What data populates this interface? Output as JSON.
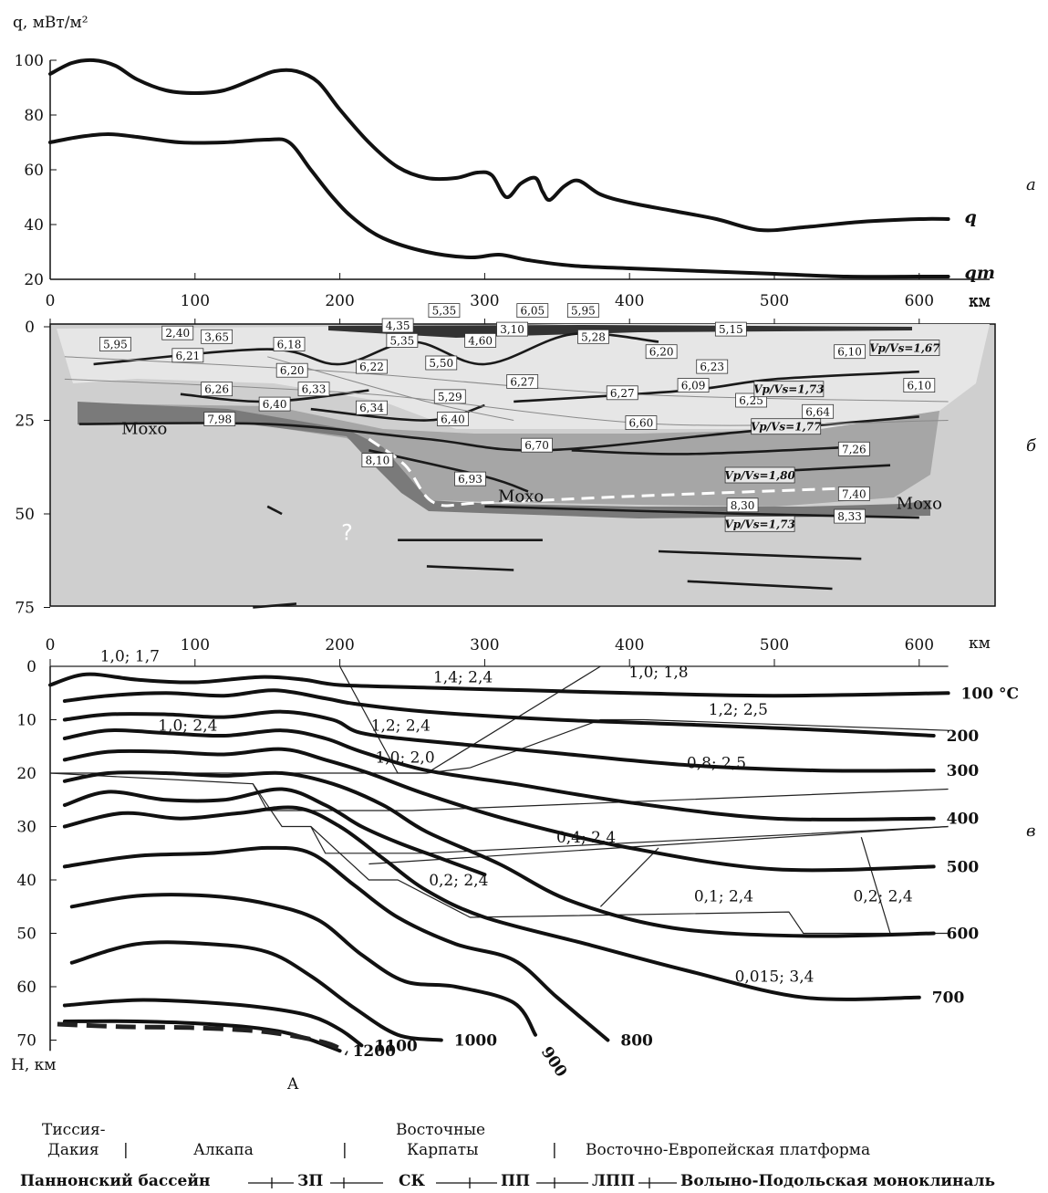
{
  "chart_data": [
    {
      "panel_letter": "а",
      "type": "line",
      "ylabel": "q, мВт/м²",
      "xlabel": "км",
      "xlim": [
        0,
        620
      ],
      "ylim": [
        20,
        100
      ],
      "y_ticks": [
        100,
        80,
        60,
        40,
        20
      ],
      "x_ticks": [
        0,
        100,
        200,
        300,
        400,
        500,
        600
      ],
      "series": [
        {
          "name": "q",
          "x": [
            0,
            15,
            30,
            45,
            60,
            80,
            100,
            120,
            140,
            155,
            170,
            185,
            200,
            220,
            240,
            260,
            280,
            295,
            305,
            315,
            325,
            335,
            340,
            345,
            355,
            365,
            380,
            400,
            430,
            460,
            490,
            520,
            560,
            600,
            620
          ],
          "y": [
            95,
            99,
            100,
            98,
            93,
            89,
            88,
            89,
            93,
            96,
            96,
            92,
            82,
            70,
            61,
            57,
            57,
            59,
            58,
            50,
            55,
            57,
            52,
            49,
            54,
            56,
            51,
            48,
            45,
            42,
            38,
            39,
            41,
            42,
            42
          ]
        },
        {
          "name": "qm",
          "x": [
            0,
            20,
            40,
            60,
            90,
            120,
            150,
            165,
            180,
            195,
            210,
            230,
            260,
            290,
            310,
            330,
            360,
            400,
            450,
            500,
            550,
            600,
            620
          ],
          "y": [
            70,
            72,
            73,
            72,
            70,
            70,
            71,
            70,
            60,
            50,
            42,
            35,
            30,
            28,
            29,
            27,
            25,
            24,
            23,
            22,
            21,
            21,
            21
          ]
        }
      ]
    },
    {
      "panel_letter": "б",
      "type": "table",
      "xlabel": "км",
      "x_ticks": [
        0,
        100,
        200,
        300,
        400,
        500,
        600
      ],
      "y_ticks": [
        0,
        25,
        50,
        75
      ],
      "moho_labels": [
        {
          "text": "Мохо",
          "x": 65,
          "depth": 27
        },
        {
          "text": "Мохо",
          "x": 325,
          "depth": 45
        },
        {
          "text": "Мохо",
          "x": 600,
          "depth": 47
        }
      ],
      "question_mark": "?",
      "velocities": [
        {
          "v": "2,40",
          "x": 88,
          "depth": 2
        },
        {
          "v": "3,65",
          "x": 115,
          "depth": 3
        },
        {
          "v": "5,95",
          "x": 45,
          "depth": 5
        },
        {
          "v": "6,21",
          "x": 95,
          "depth": 8
        },
        {
          "v": "6,18",
          "x": 165,
          "depth": 5
        },
        {
          "v": "4,35",
          "x": 240,
          "depth": 0
        },
        {
          "v": "5,35",
          "x": 272,
          "depth": -4
        },
        {
          "v": "5,35",
          "x": 243,
          "depth": 4
        },
        {
          "v": "6,05",
          "x": 333,
          "depth": -4
        },
        {
          "v": "5,95",
          "x": 368,
          "depth": -4
        },
        {
          "v": "3,10",
          "x": 319,
          "depth": 1
        },
        {
          "v": "4,60",
          "x": 297,
          "depth": 4
        },
        {
          "v": "5,28",
          "x": 375,
          "depth": 3
        },
        {
          "v": "5,15",
          "x": 470,
          "depth": 1
        },
        {
          "v": "6,20",
          "x": 167,
          "depth": 12
        },
        {
          "v": "6,22",
          "x": 222,
          "depth": 11
        },
        {
          "v": "5,50",
          "x": 270,
          "depth": 10
        },
        {
          "v": "6,20",
          "x": 422,
          "depth": 7
        },
        {
          "v": "6,10",
          "x": 552,
          "depth": 7
        },
        {
          "v": "6,23",
          "x": 457,
          "depth": 11
        },
        {
          "v": "6,26",
          "x": 115,
          "depth": 17
        },
        {
          "v": "6,33",
          "x": 182,
          "depth": 17
        },
        {
          "v": "6,27",
          "x": 326,
          "depth": 15
        },
        {
          "v": "5,29",
          "x": 276,
          "depth": 19
        },
        {
          "v": "6,09",
          "x": 444,
          "depth": 16
        },
        {
          "v": "6,27",
          "x": 395,
          "depth": 18
        },
        {
          "v": "6,25",
          "x": 484,
          "depth": 20
        },
        {
          "v": "6,10",
          "x": 600,
          "depth": 16
        },
        {
          "v": "6,40",
          "x": 155,
          "depth": 21
        },
        {
          "v": "6,34",
          "x": 222,
          "depth": 22
        },
        {
          "v": "6,40",
          "x": 278,
          "depth": 25
        },
        {
          "v": "6,64",
          "x": 530,
          "depth": 23
        },
        {
          "v": "7,98",
          "x": 117,
          "depth": 25
        },
        {
          "v": "6,60",
          "x": 408,
          "depth": 26
        },
        {
          "v": "6,70",
          "x": 336,
          "depth": 32
        },
        {
          "v": "7,26",
          "x": 555,
          "depth": 33
        },
        {
          "v": "8,10",
          "x": 226,
          "depth": 36
        },
        {
          "v": "6,93",
          "x": 290,
          "depth": 41
        },
        {
          "v": "7,40",
          "x": 555,
          "depth": 45
        },
        {
          "v": "8,30",
          "x": 478,
          "depth": 48
        },
        {
          "v": "8,33",
          "x": 552,
          "depth": 51
        }
      ],
      "ratios": [
        {
          "text": "Vp/Vs=1,67",
          "x": 590,
          "depth": 6
        },
        {
          "text": "Vp/Vs=1,73",
          "x": 510,
          "depth": 17
        },
        {
          "text": "Vp/Vs=1,77",
          "x": 508,
          "depth": 27
        },
        {
          "text": "Vp/Vs=1,80",
          "x": 490,
          "depth": 40
        },
        {
          "text": "Vp/Vs=1,73",
          "x": 490,
          "depth": 53
        }
      ]
    },
    {
      "panel_letter": "в",
      "type": "line",
      "xlabel": "км",
      "ylabel": "H, км",
      "x_ticks": [
        0,
        100,
        200,
        300,
        400,
        500,
        600
      ],
      "y_ticks": [
        0,
        10,
        20,
        30,
        40,
        50,
        60,
        70
      ],
      "xlim": [
        0,
        620
      ],
      "ylim": [
        0,
        70
      ],
      "series": [
        {
          "name": "100 °C",
          "x": [
            0,
            25,
            60,
            100,
            145,
            175,
            200,
            260,
            330,
            400,
            500,
            620
          ],
          "y": [
            3.5,
            1.5,
            2.5,
            3,
            2,
            2.5,
            3.5,
            4,
            4.5,
            5,
            5.5,
            5
          ]
        },
        {
          "name": "200",
          "x": [
            10,
            40,
            80,
            120,
            155,
            190,
            210,
            260,
            350,
            450,
            540,
            610
          ],
          "y": [
            6.5,
            5.5,
            5,
            5.5,
            4.5,
            6,
            7,
            8.5,
            10,
            11,
            12,
            13
          ]
        },
        {
          "name": "300",
          "x": [
            10,
            40,
            80,
            120,
            160,
            195,
            215,
            260,
            340,
            440,
            530,
            610
          ],
          "y": [
            10,
            9,
            9,
            9.5,
            8.5,
            10,
            12.5,
            14,
            16,
            18.5,
            19.5,
            19.5
          ]
        },
        {
          "name": "400",
          "x": [
            10,
            40,
            80,
            120,
            160,
            190,
            215,
            260,
            320,
            400,
            500,
            610
          ],
          "y": [
            13.5,
            12,
            12.5,
            13,
            12,
            13.5,
            16,
            19.5,
            22,
            25.5,
            28.5,
            28.5
          ]
        },
        {
          "name": "500",
          "x": [
            10,
            40,
            80,
            120,
            160,
            190,
            220,
            260,
            320,
            400,
            500,
            610
          ],
          "y": [
            17.5,
            16,
            16,
            16.5,
            15.5,
            17.5,
            20,
            24,
            29,
            34,
            38,
            37.5
          ]
        },
        {
          "name": "600",
          "x": [
            10,
            40,
            80,
            120,
            160,
            195,
            230,
            260,
            310,
            360,
            430,
            520,
            610
          ],
          "y": [
            21.5,
            20,
            20,
            20.5,
            20,
            22,
            26,
            31,
            37,
            44,
            49,
            50.5,
            50
          ]
        },
        {
          "name": "",
          "x": [
            10,
            40,
            80,
            120,
            160,
            190,
            215,
            240,
            270,
            300
          ],
          "y": [
            26,
            23.5,
            25,
            25,
            23,
            26,
            30,
            33,
            36,
            39
          ]
        },
        {
          "name": "700",
          "x": [
            10,
            50,
            90,
            130,
            170,
            200,
            230,
            260,
            300,
            370,
            440,
            520,
            600
          ],
          "y": [
            30,
            27.5,
            28.5,
            27.5,
            26.5,
            30,
            36,
            42,
            47,
            52,
            57,
            62,
            62
          ]
        },
        {
          "name": "800",
          "x": [
            10,
            60,
            110,
            150,
            180,
            210,
            240,
            280,
            320,
            350,
            385
          ],
          "y": [
            37.5,
            35.5,
            35,
            34,
            35,
            41,
            47,
            52,
            55,
            62,
            70
          ]
        },
        {
          "name": "900",
          "x": [
            15,
            60,
            110,
            150,
            185,
            215,
            245,
            280,
            320,
            335
          ],
          "y": [
            45,
            43,
            43,
            44.5,
            47.5,
            54,
            59,
            60,
            63,
            69
          ]
        },
        {
          "name": "1000",
          "x": [
            15,
            60,
            110,
            150,
            180,
            210,
            240,
            270
          ],
          "y": [
            55.5,
            52,
            52,
            53.5,
            58,
            64,
            69,
            70
          ]
        },
        {
          "name": "1100",
          "x": [
            10,
            60,
            110,
            150,
            180,
            200,
            215
          ],
          "y": [
            63.5,
            62.5,
            63,
            64,
            65.5,
            68,
            71
          ]
        },
        {
          "name": "1200",
          "x": [
            10,
            60,
            110,
            150,
            175,
            200
          ],
          "y": [
            66.5,
            66.5,
            67,
            68,
            69.5,
            72
          ]
        }
      ],
      "dashed_line": {
        "label": "A",
        "x": [
          5,
          50,
          100,
          150,
          190,
          205
        ],
        "y": [
          67,
          67.5,
          67.7,
          68.5,
          70.5,
          72.5
        ]
      },
      "conductivity_labels": [
        {
          "text": "1,0; 1,7",
          "x": 55,
          "depth": -2
        },
        {
          "text": "1,4; 2,4",
          "x": 285,
          "depth": 2
        },
        {
          "text": "1,0; 1,8",
          "x": 420,
          "depth": 1
        },
        {
          "text": "1,2; 2,5",
          "x": 475,
          "depth": 8
        },
        {
          "text": "1,0; 2,4",
          "x": 95,
          "depth": 11
        },
        {
          "text": "1,2; 2,4",
          "x": 242,
          "depth": 11
        },
        {
          "text": "1,0; 2,0",
          "x": 245,
          "depth": 17
        },
        {
          "text": "0,8; 2,5",
          "x": 460,
          "depth": 18
        },
        {
          "text": "0,4; 2,4",
          "x": 370,
          "depth": 32
        },
        {
          "text": "0,2; 2,4",
          "x": 282,
          "depth": 40
        },
        {
          "text": "0,1; 2,4",
          "x": 465,
          "depth": 43
        },
        {
          "text": "0,2; 2,4",
          "x": 575,
          "depth": 43
        },
        {
          "text": "0,015; 3,4",
          "x": 500,
          "depth": 58
        }
      ],
      "block_boundaries": [
        {
          "x": [
            200,
            240,
            260
          ],
          "y": [
            0,
            20,
            20
          ]
        },
        {
          "x": [
            240,
            260,
            380
          ],
          "y": [
            20,
            20,
            0
          ]
        },
        {
          "x": [
            260,
            290,
            380,
            410,
            620
          ],
          "y": [
            20,
            19,
            10,
            10,
            12
          ]
        },
        {
          "x": [
            0,
            240
          ],
          "y": [
            20,
            20
          ]
        },
        {
          "x": [
            0,
            140,
            150,
            250,
            620
          ],
          "y": [
            20,
            22,
            27,
            27,
            23
          ]
        },
        {
          "x": [
            140,
            160,
            180,
            190,
            260,
            620
          ],
          "y": [
            22,
            30,
            30,
            35,
            35,
            30
          ]
        },
        {
          "x": [
            180,
            220,
            240,
            290,
            510,
            520,
            620
          ],
          "y": [
            30,
            40,
            40,
            47,
            46,
            50,
            50
          ]
        },
        {
          "x": [
            220,
            620
          ],
          "y": [
            37,
            30
          ]
        },
        {
          "x": [
            380,
            420
          ],
          "y": [
            45,
            34
          ]
        },
        {
          "x": [
            560,
            580
          ],
          "y": [
            32,
            50
          ]
        },
        {
          "x": [
            0,
            620
          ],
          "y": [
            0,
            0
          ]
        }
      ]
    }
  ],
  "bottom_legend": {
    "row1_line1": "Тиссия-",
    "row1_line2": "Дакия",
    "row1_item2": "Алкапа",
    "row1_item3_line1": "Восточные",
    "row1_item3_line2": "Карпаты",
    "row1_item4": "Восточно-Европейская платформа",
    "row2": [
      "Паннонский бассейн",
      "ЗП",
      "СК",
      "ПП",
      "ЛПП",
      "Волыно-Подольская моноклиналь"
    ]
  }
}
